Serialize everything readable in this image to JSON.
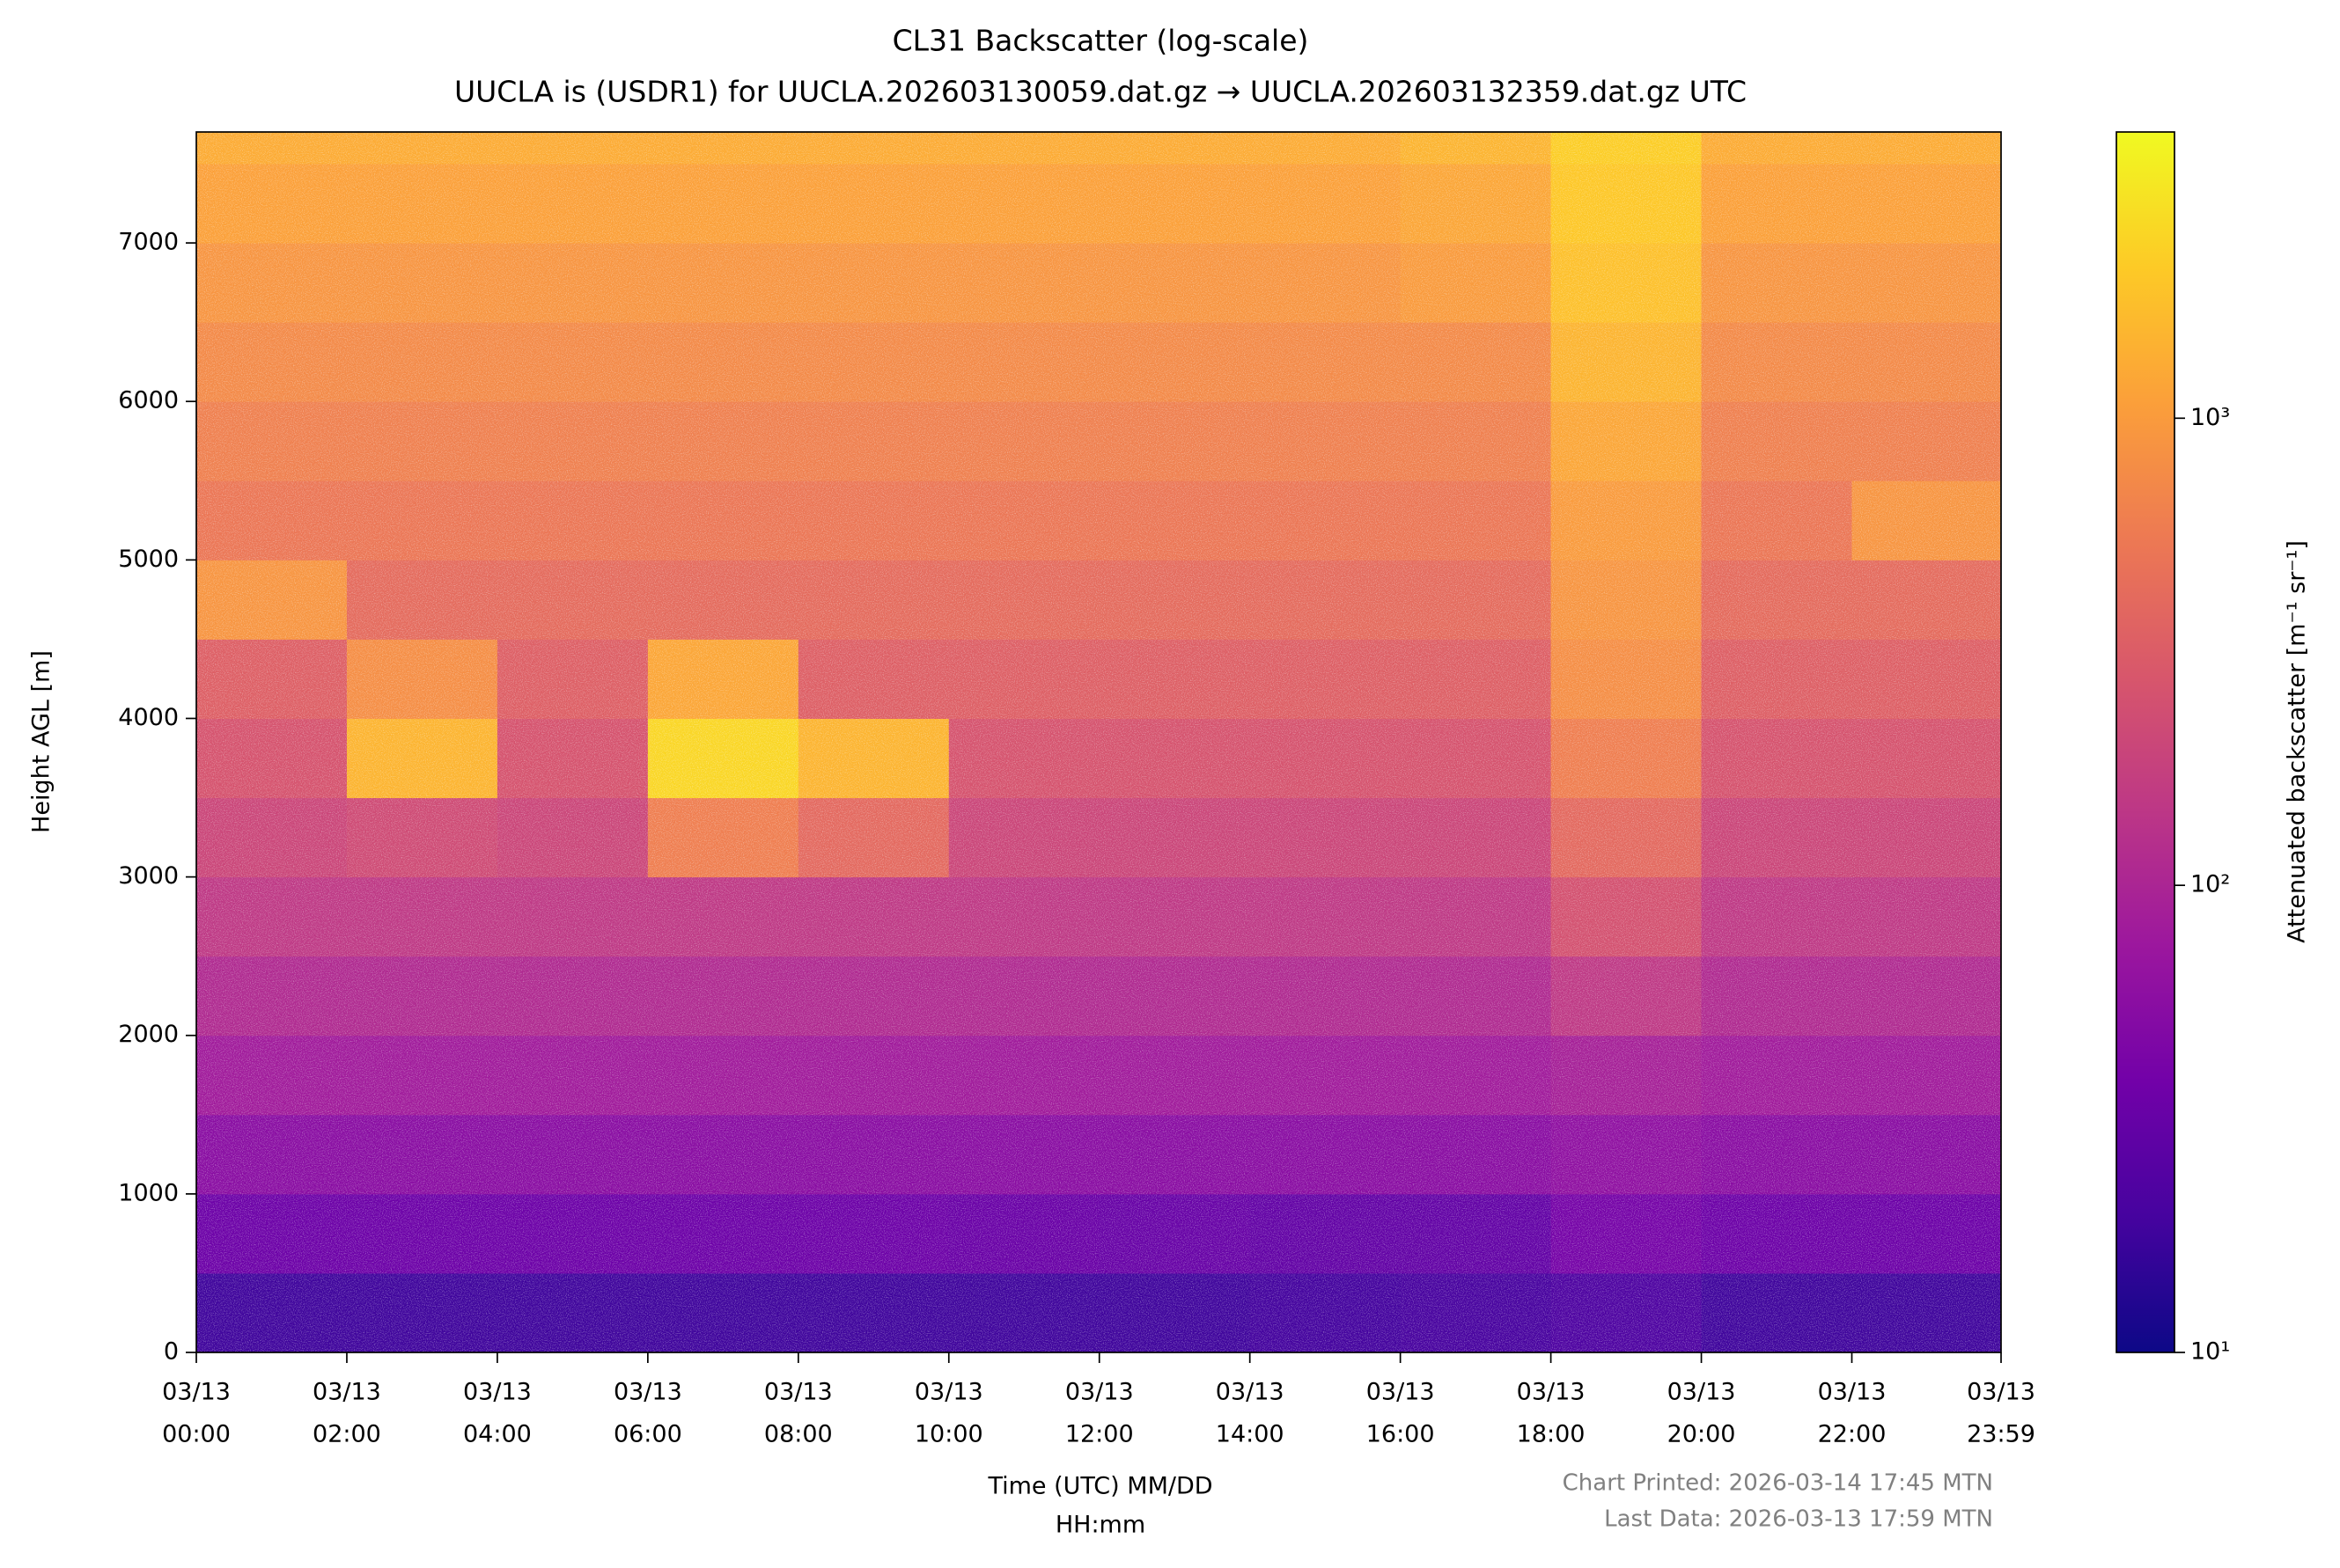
{
  "chart_data": {
    "type": "heatmap",
    "title": [
      "CL31 Backscatter (log-scale)",
      "UUCLA is (USDR1) for UUCLA.202603130059.dat.gz → UUCLA.202603132359.dat.gz UTC"
    ],
    "xlabel": [
      "Time (UTC) MM/DD",
      "HH:mm"
    ],
    "ylabel": "Height AGL [m]",
    "colorbar_label": "Attenuated backscatter [m⁻¹ sr⁻¹]",
    "footer": [
      "Chart Printed: 2026-03-14 17:45 MTN",
      "Last Data: 2026-03-13 17:59 MTN"
    ],
    "xlim": [
      0,
      23.983
    ],
    "ylim": [
      0,
      7700
    ],
    "xticks": [
      {
        "value": 0,
        "label": [
          "03/13",
          "00:00"
        ]
      },
      {
        "value": 2,
        "label": [
          "03/13",
          "02:00"
        ]
      },
      {
        "value": 4,
        "label": [
          "03/13",
          "04:00"
        ]
      },
      {
        "value": 6,
        "label": [
          "03/13",
          "06:00"
        ]
      },
      {
        "value": 8,
        "label": [
          "03/13",
          "08:00"
        ]
      },
      {
        "value": 10,
        "label": [
          "03/13",
          "10:00"
        ]
      },
      {
        "value": 12,
        "label": [
          "03/13",
          "12:00"
        ]
      },
      {
        "value": 14,
        "label": [
          "03/13",
          "14:00"
        ]
      },
      {
        "value": 16,
        "label": [
          "03/13",
          "16:00"
        ]
      },
      {
        "value": 18,
        "label": [
          "03/13",
          "18:00"
        ]
      },
      {
        "value": 20,
        "label": [
          "03/13",
          "20:00"
        ]
      },
      {
        "value": 22,
        "label": [
          "03/13",
          "22:00"
        ]
      },
      {
        "value": 23.983,
        "label": [
          "03/13",
          "23:59"
        ]
      }
    ],
    "yticks": [
      0,
      1000,
      2000,
      3000,
      4000,
      5000,
      6000,
      7000
    ],
    "xbins": [
      0,
      2,
      4,
      6,
      8,
      10,
      12,
      14,
      16,
      18,
      20,
      22,
      23.983
    ],
    "ybins": [
      0,
      500,
      1000,
      1500,
      2000,
      2500,
      3000,
      3500,
      4000,
      4500,
      5000,
      5500,
      6000,
      6500,
      7000,
      7500,
      7700
    ],
    "z": [
      [
        18,
        18,
        18,
        18,
        18,
        18,
        18,
        19,
        20,
        22,
        18,
        18
      ],
      [
        35,
        35,
        35,
        35,
        35,
        33,
        32,
        30,
        30,
        40,
        35,
        35
      ],
      [
        55,
        55,
        55,
        55,
        55,
        55,
        55,
        55,
        55,
        60,
        55,
        55
      ],
      [
        80,
        80,
        80,
        80,
        80,
        80,
        80,
        80,
        80,
        90,
        80,
        80
      ],
      [
        110,
        110,
        110,
        110,
        110,
        110,
        110,
        110,
        110,
        150,
        110,
        110
      ],
      [
        150,
        150,
        150,
        150,
        150,
        150,
        150,
        150,
        150,
        250,
        150,
        150
      ],
      [
        200,
        220,
        200,
        600,
        400,
        200,
        200,
        200,
        200,
        400,
        200,
        200
      ],
      [
        260,
        1500,
        260,
        2500,
        1500,
        260,
        260,
        260,
        260,
        600,
        260,
        260
      ],
      [
        330,
        800,
        330,
        1200,
        330,
        330,
        330,
        330,
        330,
        800,
        330,
        330
      ],
      [
        900,
        420,
        420,
        420,
        420,
        420,
        420,
        420,
        420,
        900,
        420,
        420
      ],
      [
        520,
        520,
        520,
        520,
        520,
        520,
        520,
        520,
        520,
        1000,
        520,
        900
      ],
      [
        620,
        620,
        620,
        620,
        620,
        620,
        620,
        620,
        620,
        1200,
        620,
        620
      ],
      [
        750,
        750,
        750,
        750,
        750,
        750,
        750,
        750,
        750,
        1500,
        750,
        750
      ],
      [
        900,
        900,
        900,
        900,
        900,
        900,
        900,
        900,
        1000,
        1800,
        900,
        900
      ],
      [
        1100,
        1100,
        1100,
        1100,
        1100,
        1100,
        1100,
        1100,
        1200,
        2000,
        1100,
        1100
      ],
      [
        1300,
        1300,
        1300,
        1300,
        1300,
        1300,
        1300,
        1300,
        1500,
        2200,
        1300,
        1300
      ]
    ],
    "color_scale": "log",
    "clim": [
      10,
      4100
    ],
    "cticks": [
      {
        "value": 10,
        "label": "10¹"
      },
      {
        "value": 100,
        "label": "10²"
      },
      {
        "value": 1000,
        "label": "10³"
      }
    ],
    "colormap": [
      "#0d0887",
      "#46039f",
      "#7201a8",
      "#9c179e",
      "#bd3786",
      "#d8576b",
      "#ed7953",
      "#fb9f3a",
      "#fdca26",
      "#f0f921"
    ]
  }
}
